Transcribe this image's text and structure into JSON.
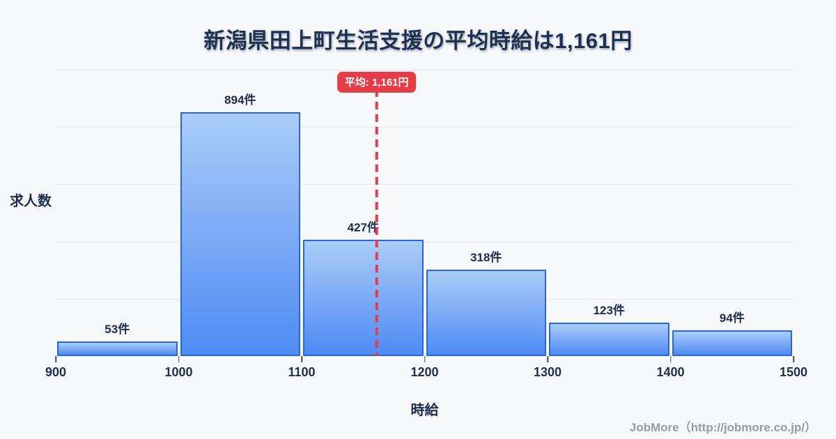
{
  "title": "新潟県田上町生活支援の平均時給は1,161円",
  "chart_data": {
    "type": "bar",
    "subtype": "histogram",
    "bin_edges": [
      900,
      1000,
      1100,
      1200,
      1300,
      1400,
      1500
    ],
    "categories": [
      "900-1000",
      "1000-1100",
      "1100-1200",
      "1200-1300",
      "1300-1400",
      "1400-1500"
    ],
    "values": [
      53,
      894,
      427,
      318,
      123,
      94
    ],
    "bar_labels": [
      "53件",
      "894件",
      "427件",
      "318件",
      "123件",
      "94件"
    ],
    "x_tick_labels": [
      "900",
      "1000",
      "1100",
      "1200",
      "1300",
      "1400",
      "1500"
    ],
    "xlabel": "時給",
    "ylabel": "求人数",
    "xlim": [
      900,
      1500
    ],
    "ylim": [
      0,
      1050
    ],
    "grid": "horizontal, 5 unlabeled lines, legend none",
    "average_line": {
      "value": 1161,
      "label": "平均: 1,161円"
    }
  },
  "footer": {
    "text": "JobMore（http://jobmore.co.jp/）"
  },
  "colors": {
    "background": "#f7f8fa",
    "title_text": "#1e3050",
    "bar_fill_top": "#aacdf8",
    "bar_fill_bottom": "#4e8bf5",
    "bar_border": "#2766dd",
    "average_accent": "#e63c49",
    "badge_text": "#ffffff",
    "gridline": "#e4e7ef",
    "axis_text": "#20304f",
    "footer_text": "#9a9aa0"
  }
}
